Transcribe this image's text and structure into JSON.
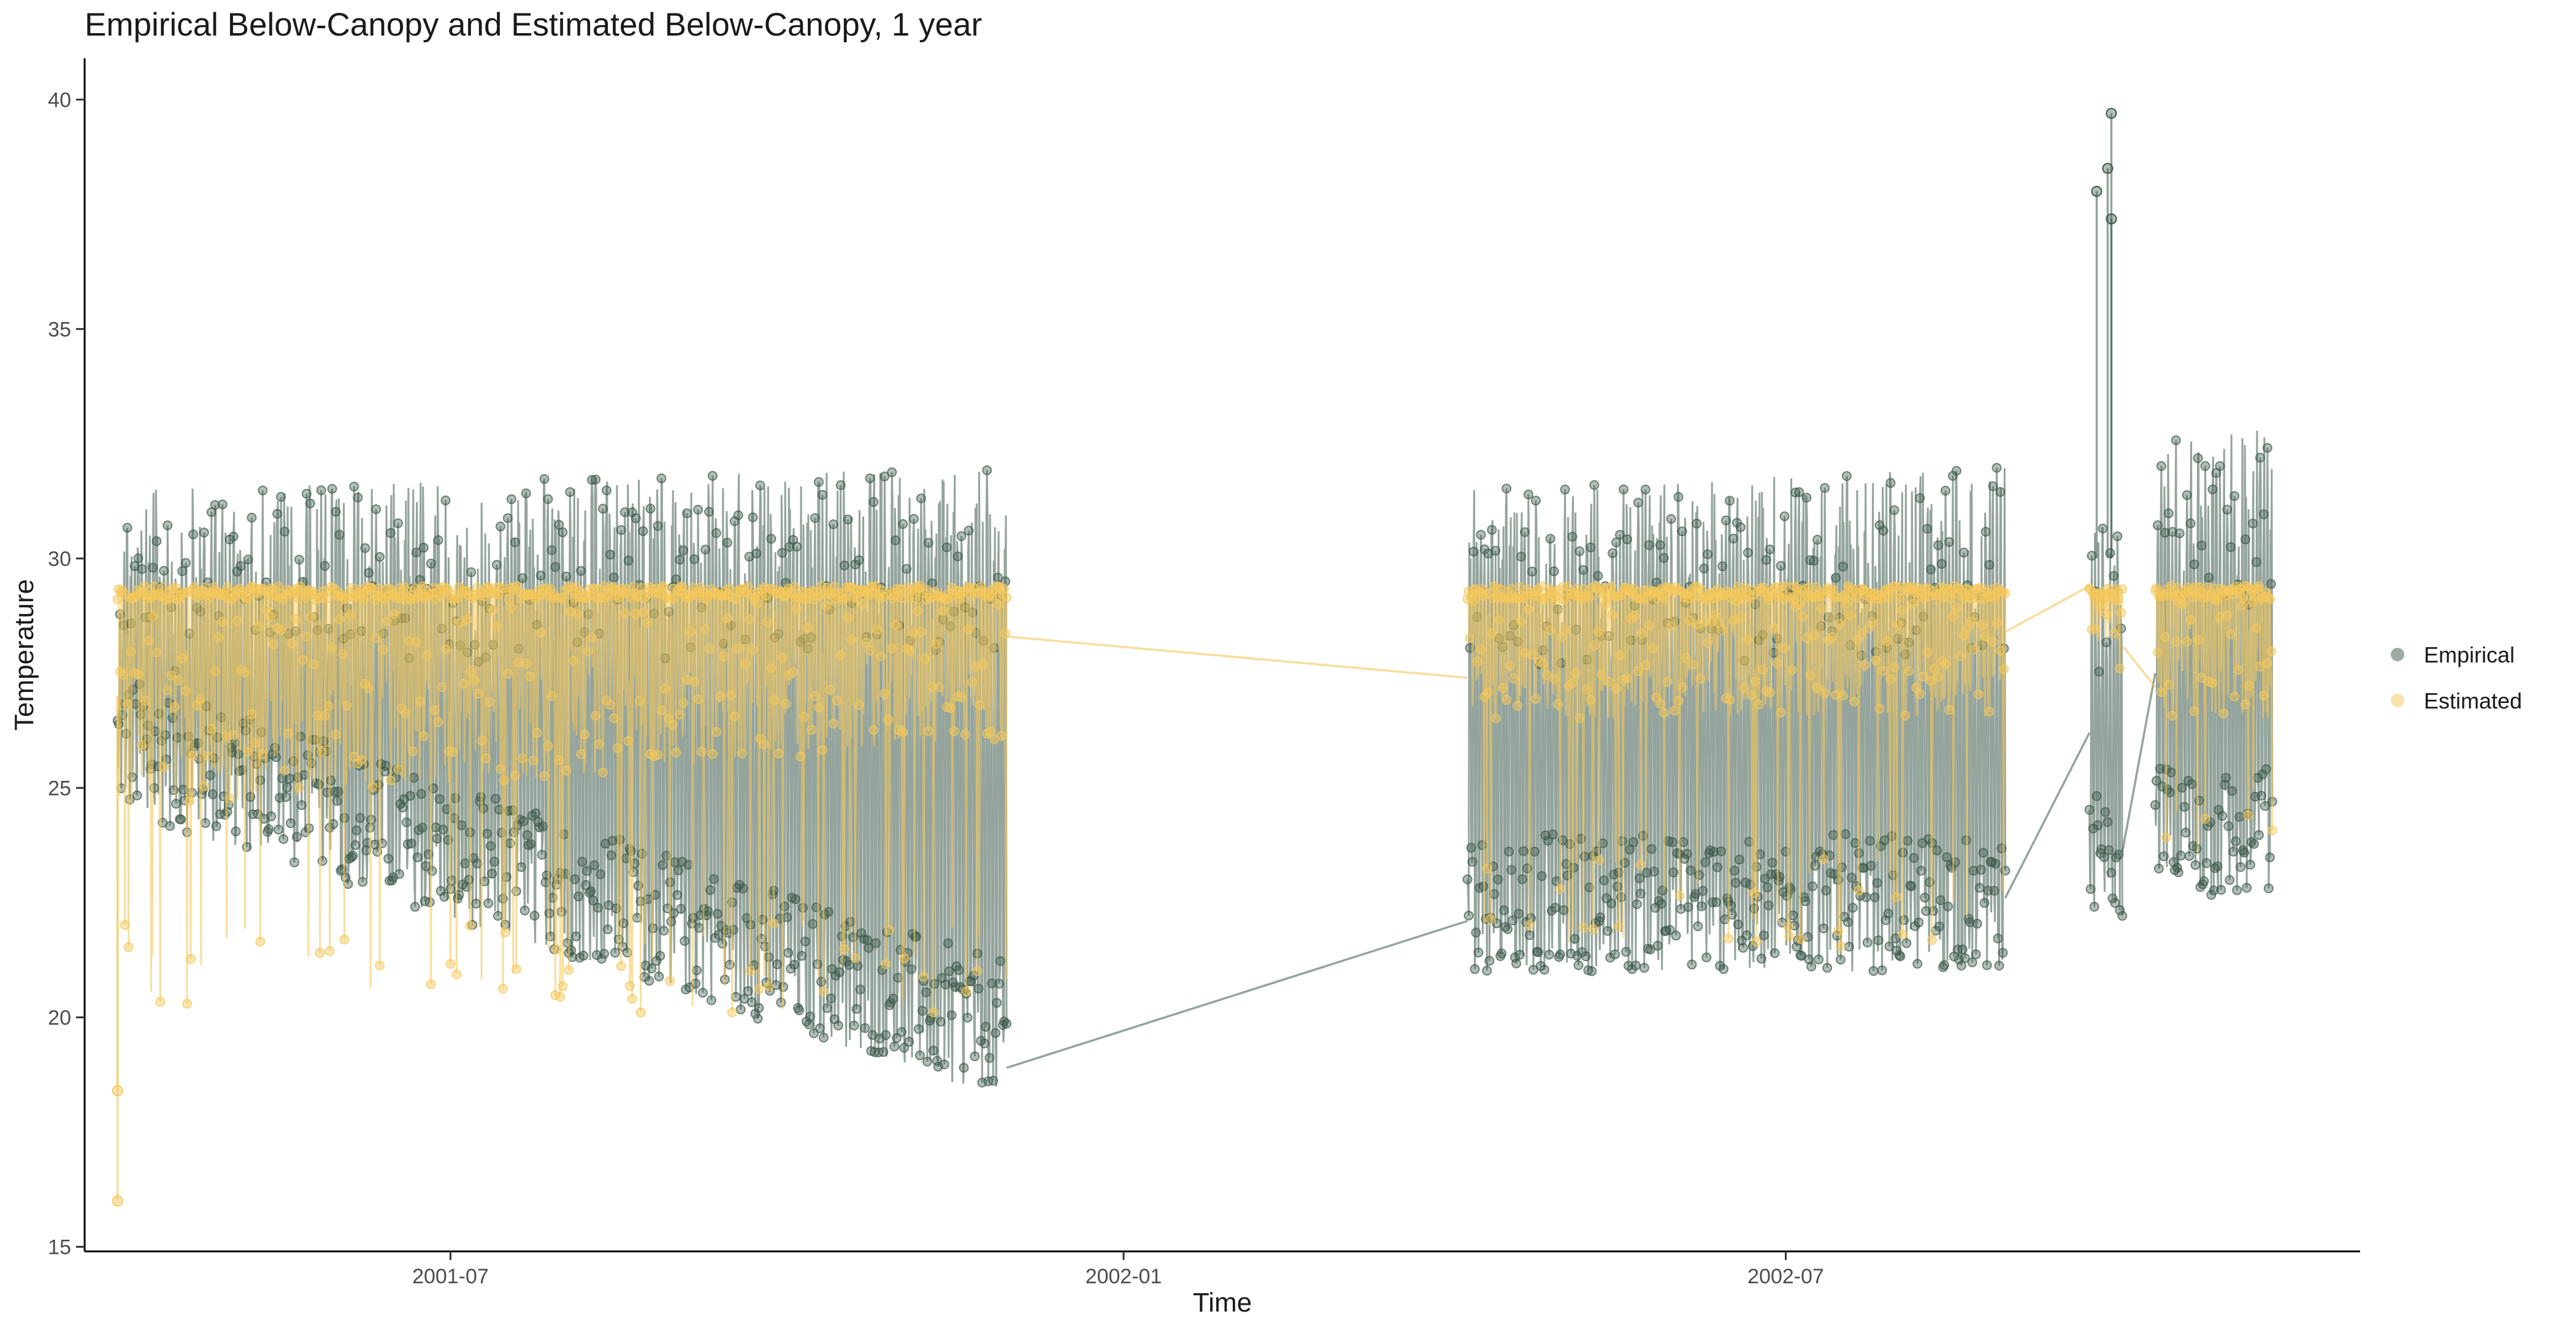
{
  "chart_data": {
    "type": "line",
    "title": "Empirical Below-Canopy and Estimated Below-Canopy, 1 year",
    "xlabel": "Time",
    "ylabel": "Temperature",
    "x_range": [
      "2001-03-23",
      "2002-12-05"
    ],
    "x_ticks": [
      "2001-07",
      "2002-01",
      "2002-07"
    ],
    "ylim": [
      14.9,
      40.9
    ],
    "y_ticks": [
      15,
      20,
      25,
      30,
      35,
      40
    ],
    "grid": false,
    "legend_position": "right",
    "series": [
      {
        "name": "Empirical",
        "color": "#3d5a4a",
        "segments": [
          {
            "start": "2001-04-01",
            "end": "2001-11-30",
            "low_start": 24.5,
            "low_end": 18.2,
            "high_start": 31.5,
            "high_end": 32.0,
            "min": 17.6,
            "max": 33.5
          },
          {
            "start": "2002-04-05",
            "end": "2002-08-30",
            "low_start": 21.0,
            "low_end": 21.0,
            "high_start": 31.5,
            "high_end": 32.0,
            "min": 20.2,
            "max": 33.5
          },
          {
            "start": "2002-09-22",
            "end": "2002-10-01",
            "low_start": 22.0,
            "low_end": 22.0,
            "high_start": 31.0,
            "high_end": 31.0,
            "min": 21.6,
            "max": 39.7
          },
          {
            "start": "2002-10-10",
            "end": "2002-11-11",
            "low_start": 22.5,
            "low_end": 22.5,
            "high_start": 32.5,
            "high_end": 33.0,
            "min": 21.6,
            "max": 33.6
          }
        ],
        "connectors": [
          {
            "x0": "2001-11-30",
            "y0": 18.9,
            "x1": "2002-04-05",
            "y1": 22.1
          },
          {
            "x0": "2002-08-30",
            "y0": 22.6,
            "x1": "2002-09-22",
            "y1": 26.2
          },
          {
            "x0": "2002-10-01",
            "y0": 23.6,
            "x1": "2002-10-10",
            "y1": 27.5
          }
        ],
        "spikes": [
          {
            "x": "2002-09-28",
            "y": 39.7
          },
          {
            "x": "2002-09-27",
            "y": 38.5
          },
          {
            "x": "2002-09-24",
            "y": 38.0
          },
          {
            "x": "2002-09-28",
            "y": 37.4
          }
        ]
      },
      {
        "name": "Estimated",
        "color": "#f5c85a",
        "cap": 29.4,
        "segments": [
          {
            "start": "2001-04-01",
            "end": "2001-11-30",
            "low_start": 24.5,
            "low_end": 26.0,
            "min": 20.1,
            "max": 29.4
          },
          {
            "start": "2002-04-05",
            "end": "2002-08-30",
            "low_start": 26.5,
            "low_end": 26.5,
            "min": 21.5,
            "max": 29.4
          },
          {
            "start": "2002-09-22",
            "end": "2002-10-01",
            "low_start": 28.2,
            "low_end": 28.2,
            "min": 27.5,
            "max": 29.4
          },
          {
            "start": "2002-10-10",
            "end": "2002-11-11",
            "low_start": 26.5,
            "low_end": 26.5,
            "min": 23.0,
            "max": 29.4
          }
        ],
        "connectors": [
          {
            "x0": "2001-11-30",
            "y0": 28.3,
            "x1": "2002-04-05",
            "y1": 27.4
          },
          {
            "x0": "2002-08-30",
            "y0": 28.4,
            "x1": "2002-09-22",
            "y1": 29.4
          },
          {
            "x0": "2002-10-01",
            "y0": 28.1,
            "x1": "2002-10-10",
            "y1": 27.2
          }
        ],
        "spikes": [
          {
            "x": "2001-04-01",
            "y": 16.0
          },
          {
            "x": "2001-04-01",
            "y": 18.4
          }
        ]
      }
    ]
  }
}
